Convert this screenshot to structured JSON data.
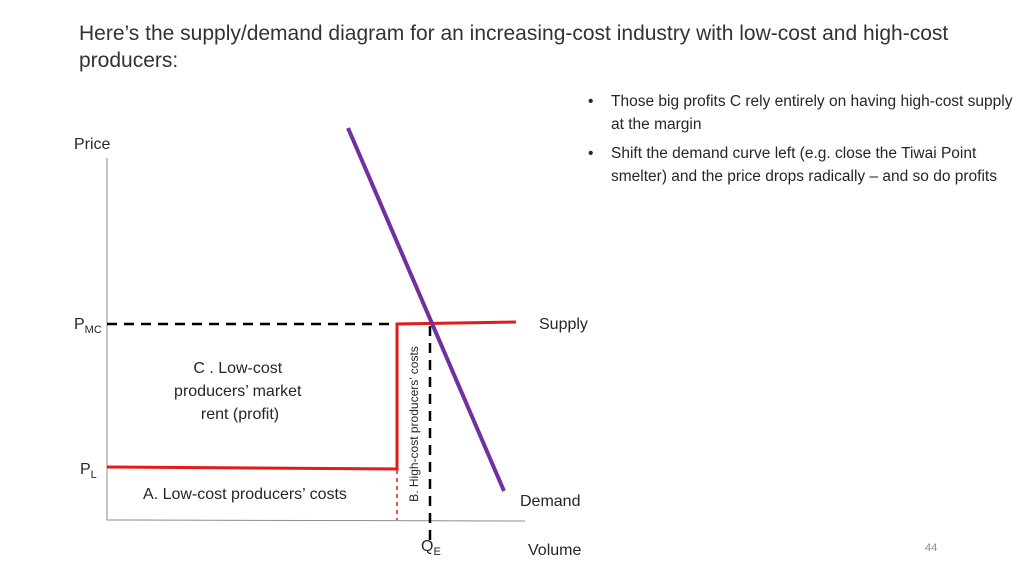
{
  "slide": {
    "title": "Here’s the supply/demand diagram for an increasing-cost industry with low-cost and high-cost producers:",
    "bullets": [
      "Those big profits C rely entirely on having high-cost supply at the margin",
      "Shift the demand curve left (e.g. close the Tiwai Point smelter) and the price drops radically – and so do profits"
    ],
    "bullet_glyph": "•",
    "page_number": "44"
  },
  "diagram": {
    "y_axis_label": "Price",
    "x_axis_label": "Volume",
    "p_mc": {
      "main": "P",
      "sub": "MC"
    },
    "p_l": {
      "main": "P",
      "sub": "L"
    },
    "q_e": {
      "main": "Q",
      "sub": "E"
    },
    "supply_label": "Supply",
    "demand_label": "Demand",
    "region_c": [
      "C .    Low-cost",
      "producers’ market",
      "rent (profit)"
    ],
    "region_a": "A.   Low-cost producers’ costs",
    "region_b": "B. High-cost producers’ costs",
    "colors": {
      "supply": "#e31b1b",
      "demand": "#7030a0",
      "axis": "#595959",
      "guide": "#000000"
    }
  }
}
